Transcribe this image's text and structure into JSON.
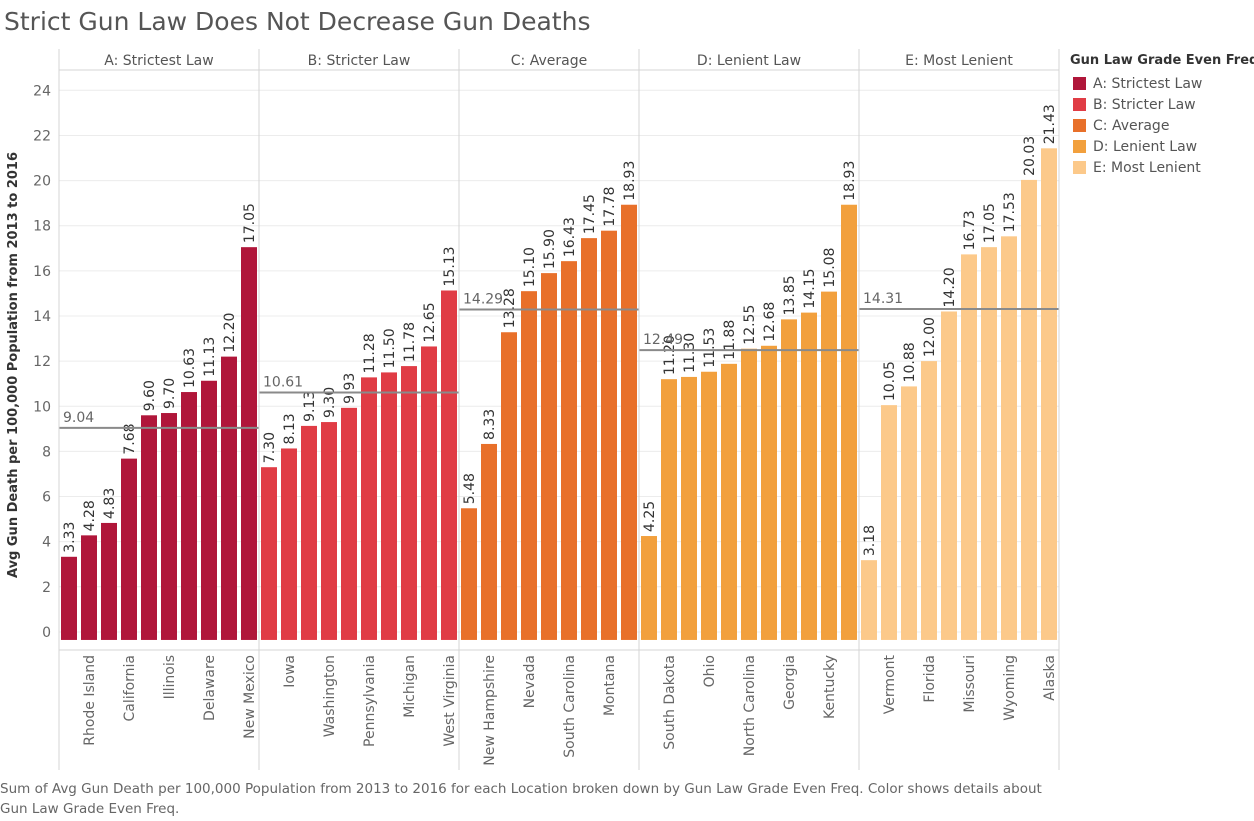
{
  "title": "Strict Gun Law Does Not Decrease Gun Deaths",
  "caption": "Sum of Avg Gun Death per 100,000 Population from 2013 to 2016 for each Location broken down by Gun Law Grade Even Freq.  Color shows details about Gun Law Grade Even Freq.",
  "legend": {
    "title": "Gun Law Grade Even Freq",
    "items": [
      {
        "label": "A: Strictest Law",
        "color": "#b0163a"
      },
      {
        "label": "B: Stricter Law",
        "color": "#e03c45"
      },
      {
        "label": "C: Average",
        "color": "#e8702a"
      },
      {
        "label": "D: Lenient Law",
        "color": "#f2a03d"
      },
      {
        "label": "E: Most Lenient",
        "color": "#fcc98a"
      }
    ]
  },
  "chart_data": {
    "type": "bar",
    "ylabel": "Avg Gun Death per 100,000 Population from 2013 to 2016",
    "ylim": [
      -0.8,
      24.9
    ],
    "yticks": [
      0,
      2,
      4,
      6,
      8,
      10,
      12,
      14,
      16,
      18,
      20,
      22,
      24
    ],
    "grid": true,
    "legend_position": "right",
    "panels": [
      {
        "name": "A: Strictest Law",
        "color": "#b0163a",
        "average": 9.04,
        "average_label": "9.04",
        "categories": [
          "",
          "Rhode Island",
          "",
          "California",
          "",
          "Illinois",
          "",
          "Delaware",
          "",
          "New Mexico"
        ],
        "values": [
          3.33,
          4.28,
          4.83,
          7.68,
          9.6,
          9.7,
          10.63,
          11.13,
          12.2,
          17.05
        ],
        "value_labels": [
          "3.33",
          "4.28",
          "4.83",
          "7.68",
          "9.60",
          "9.70",
          "10.63",
          "11.13",
          "12.20",
          "17.05"
        ]
      },
      {
        "name": "B: Stricter Law",
        "color": "#e03c45",
        "average": 10.61,
        "average_label": "10.61",
        "categories": [
          "",
          "Iowa",
          "",
          "Washington",
          "",
          "Pennsylvania",
          "",
          "Michigan",
          "",
          "West Virginia"
        ],
        "values": [
          7.3,
          8.13,
          9.13,
          9.3,
          9.93,
          11.28,
          11.5,
          11.78,
          12.65,
          15.13
        ],
        "value_labels": [
          "7.30",
          "8.13",
          "9.13",
          "9.30",
          "9.93",
          "11.28",
          "11.50",
          "11.78",
          "12.65",
          "15.13"
        ]
      },
      {
        "name": "C: Average",
        "color": "#e8702a",
        "average": 14.29,
        "average_label": "14.29",
        "categories": [
          "",
          "New Hampshire",
          "",
          "Nevada",
          "",
          "South Carolina",
          "",
          "Montana",
          ""
        ],
        "values": [
          5.48,
          8.33,
          13.28,
          15.1,
          15.9,
          16.43,
          17.45,
          17.78,
          18.93
        ],
        "value_labels": [
          "5.48",
          "8.33",
          "13.28",
          "15.10",
          "15.90",
          "16.43",
          "17.45",
          "17.78",
          "18.93"
        ]
      },
      {
        "name": "D: Lenient Law",
        "color": "#f2a03d",
        "average": 12.49,
        "average_label": "12.49",
        "categories": [
          "",
          "South Dakota",
          "",
          "Ohio",
          "",
          "North Carolina",
          "",
          "Georgia",
          "",
          "Kentucky",
          ""
        ],
        "values": [
          4.25,
          11.2,
          11.3,
          11.53,
          11.88,
          12.55,
          12.68,
          13.85,
          14.15,
          15.08,
          18.93
        ],
        "value_labels": [
          "4.25",
          "11.20",
          "11.30",
          "11.53",
          "11.88",
          "12.55",
          "12.68",
          "13.85",
          "14.15",
          "15.08",
          "18.93"
        ]
      },
      {
        "name": "E: Most Lenient",
        "color": "#fcc98a",
        "average": 14.31,
        "average_label": "14.31",
        "categories": [
          "",
          "Vermont",
          "",
          "Florida",
          "",
          "Missouri",
          "",
          "Wyoming",
          "",
          "Alaska"
        ],
        "values": [
          3.18,
          10.05,
          10.88,
          12.0,
          14.2,
          16.73,
          17.05,
          17.53,
          20.03,
          21.43
        ],
        "value_labels": [
          "3.18",
          "10.05",
          "10.88",
          "12.00",
          "14.20",
          "16.73",
          "17.05",
          "17.53",
          "20.03",
          "21.43"
        ]
      }
    ]
  }
}
